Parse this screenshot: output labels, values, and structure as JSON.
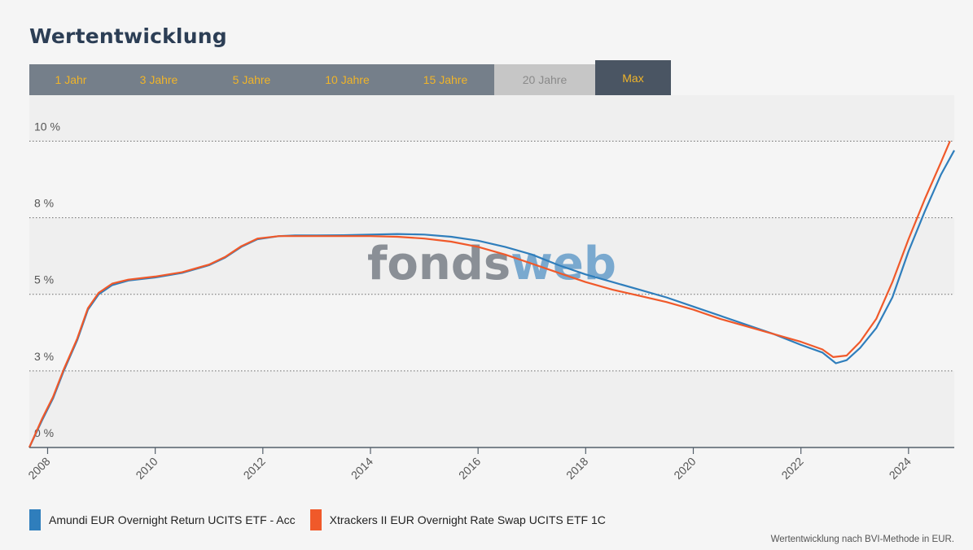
{
  "title": "Wertentwicklung",
  "tabs": [
    {
      "label": "1 Jahr",
      "state": "normal"
    },
    {
      "label": "3 Jahre",
      "state": "normal"
    },
    {
      "label": "5 Jahre",
      "state": "normal"
    },
    {
      "label": "10 Jahre",
      "state": "normal"
    },
    {
      "label": "15 Jahre",
      "state": "normal"
    },
    {
      "label": "20 Jahre",
      "state": "disabled"
    },
    {
      "label": "Max",
      "state": "active"
    }
  ],
  "watermark": {
    "part1": "fonds",
    "part2": "web"
  },
  "footnote": "Wertentwicklung nach BVI-Methode in EUR.",
  "colors": {
    "series1": "#2f7ebc",
    "series2": "#f0592a",
    "accent": "#f0b429"
  },
  "chart_data": {
    "type": "line",
    "title": "Wertentwicklung",
    "xlabel": "",
    "ylabel": "",
    "xlim": [
      2007.66,
      2024.85
    ],
    "ylim": [
      0,
      11.5
    ],
    "yticks": [
      {
        "value": 0,
        "label": "0 %"
      },
      {
        "value": 2.5,
        "label": "3 %"
      },
      {
        "value": 5,
        "label": "5 %"
      },
      {
        "value": 7.5,
        "label": "8 %"
      },
      {
        "value": 10,
        "label": "10 %"
      }
    ],
    "xticks": [
      {
        "value": 2008,
        "label": "2008"
      },
      {
        "value": 2010,
        "label": "2010"
      },
      {
        "value": 2012,
        "label": "2012"
      },
      {
        "value": 2014,
        "label": "2014"
      },
      {
        "value": 2016,
        "label": "2016"
      },
      {
        "value": 2018,
        "label": "2018"
      },
      {
        "value": 2020,
        "label": "2020"
      },
      {
        "value": 2022,
        "label": "2022"
      },
      {
        "value": 2024,
        "label": "2024"
      }
    ],
    "grid": true,
    "legend": "bottom-left",
    "series": [
      {
        "name": "Amundi EUR Overnight Return UCITS ETF - Acc",
        "color": "#2f7ebc",
        "points": [
          [
            2007.66,
            0
          ],
          [
            2007.9,
            0.9
          ],
          [
            2008.1,
            1.6
          ],
          [
            2008.3,
            2.5
          ],
          [
            2008.55,
            3.5
          ],
          [
            2008.75,
            4.5
          ],
          [
            2008.95,
            5.0
          ],
          [
            2009.2,
            5.3
          ],
          [
            2009.5,
            5.45
          ],
          [
            2010.0,
            5.55
          ],
          [
            2010.5,
            5.7
          ],
          [
            2011.0,
            5.95
          ],
          [
            2011.3,
            6.2
          ],
          [
            2011.6,
            6.55
          ],
          [
            2011.9,
            6.8
          ],
          [
            2012.3,
            6.9
          ],
          [
            2012.6,
            6.92
          ],
          [
            2013.0,
            6.92
          ],
          [
            2013.5,
            6.93
          ],
          [
            2014.0,
            6.95
          ],
          [
            2014.5,
            6.97
          ],
          [
            2015.0,
            6.95
          ],
          [
            2015.5,
            6.88
          ],
          [
            2016.0,
            6.75
          ],
          [
            2016.5,
            6.55
          ],
          [
            2017.0,
            6.3
          ],
          [
            2017.5,
            5.95
          ],
          [
            2018.0,
            5.65
          ],
          [
            2018.5,
            5.4
          ],
          [
            2019.0,
            5.15
          ],
          [
            2019.5,
            4.9
          ],
          [
            2020.0,
            4.6
          ],
          [
            2020.5,
            4.3
          ],
          [
            2021.0,
            4.0
          ],
          [
            2021.5,
            3.7
          ],
          [
            2022.0,
            3.35
          ],
          [
            2022.4,
            3.1
          ],
          [
            2022.65,
            2.75
          ],
          [
            2022.85,
            2.85
          ],
          [
            2023.1,
            3.25
          ],
          [
            2023.4,
            3.9
          ],
          [
            2023.7,
            4.9
          ],
          [
            2024.0,
            6.4
          ],
          [
            2024.3,
            7.7
          ],
          [
            2024.6,
            8.9
          ],
          [
            2024.85,
            9.7
          ]
        ]
      },
      {
        "name": "Xtrackers II EUR Overnight Rate Swap UCITS ETF 1C",
        "color": "#f0592a",
        "points": [
          [
            2007.66,
            0
          ],
          [
            2007.9,
            0.95
          ],
          [
            2008.1,
            1.65
          ],
          [
            2008.3,
            2.55
          ],
          [
            2008.55,
            3.55
          ],
          [
            2008.75,
            4.55
          ],
          [
            2008.95,
            5.05
          ],
          [
            2009.2,
            5.35
          ],
          [
            2009.5,
            5.48
          ],
          [
            2010.0,
            5.58
          ],
          [
            2010.5,
            5.72
          ],
          [
            2011.0,
            5.97
          ],
          [
            2011.3,
            6.22
          ],
          [
            2011.6,
            6.57
          ],
          [
            2011.9,
            6.82
          ],
          [
            2012.3,
            6.9
          ],
          [
            2012.6,
            6.9
          ],
          [
            2013.0,
            6.9
          ],
          [
            2013.5,
            6.9
          ],
          [
            2014.0,
            6.9
          ],
          [
            2014.5,
            6.88
          ],
          [
            2015.0,
            6.82
          ],
          [
            2015.5,
            6.72
          ],
          [
            2016.0,
            6.55
          ],
          [
            2016.5,
            6.3
          ],
          [
            2017.0,
            6.0
          ],
          [
            2017.5,
            5.7
          ],
          [
            2018.0,
            5.4
          ],
          [
            2018.5,
            5.15
          ],
          [
            2019.0,
            4.95
          ],
          [
            2019.5,
            4.75
          ],
          [
            2020.0,
            4.5
          ],
          [
            2020.5,
            4.2
          ],
          [
            2021.0,
            3.95
          ],
          [
            2021.5,
            3.7
          ],
          [
            2022.0,
            3.45
          ],
          [
            2022.4,
            3.2
          ],
          [
            2022.6,
            2.95
          ],
          [
            2022.85,
            3.0
          ],
          [
            2023.1,
            3.45
          ],
          [
            2023.4,
            4.2
          ],
          [
            2023.7,
            5.4
          ],
          [
            2024.0,
            6.8
          ],
          [
            2024.3,
            8.1
          ],
          [
            2024.6,
            9.3
          ],
          [
            2024.77,
            10.0
          ]
        ]
      }
    ]
  }
}
